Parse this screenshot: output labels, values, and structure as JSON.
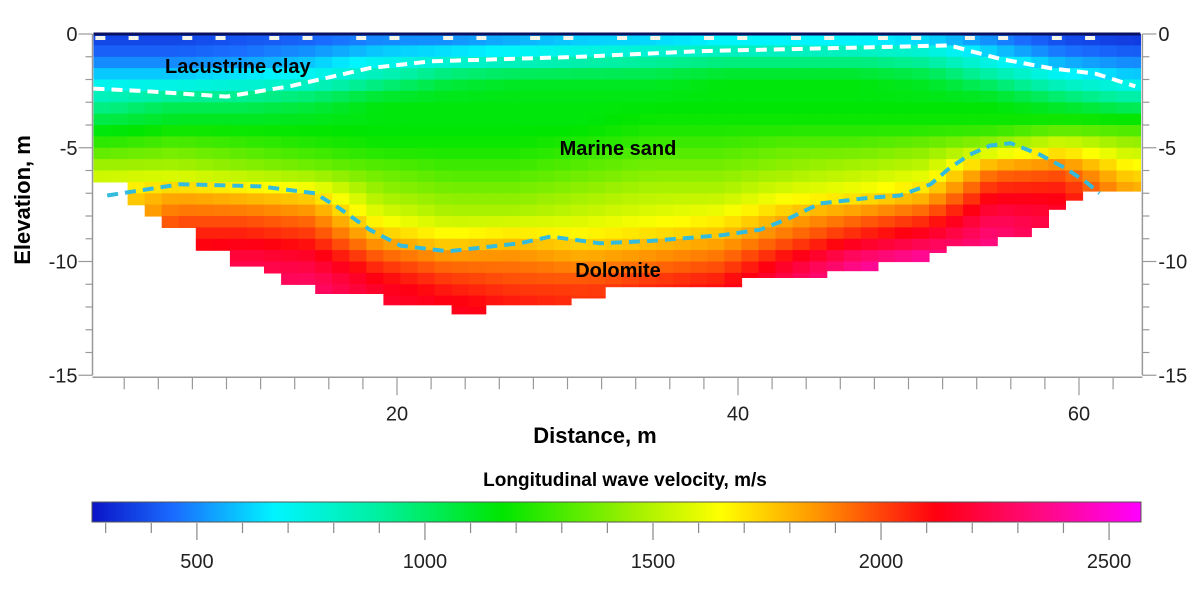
{
  "chart_data": {
    "type": "heatmap",
    "title": "",
    "xlabel": "Distance, m",
    "ylabel": "Elevation, m",
    "xlim": [
      2.2,
      63.6
    ],
    "ylim": [
      -15,
      0
    ],
    "xticks": [
      "20",
      "40",
      "60"
    ],
    "xtick_values": [
      20,
      40,
      60
    ],
    "yticks": [
      "0",
      "-5",
      "-10",
      "-15"
    ],
    "ytick_values": [
      0,
      -5,
      -10,
      -15
    ],
    "annotations": [
      {
        "text": "Lacustrine clay",
        "x": 12,
        "y": -1.4
      },
      {
        "text": "Marine sand",
        "x": 33,
        "y": -5
      },
      {
        "text": "Dolomite",
        "x": 33,
        "y": -10.3
      }
    ],
    "grid_x": [
      3,
      7,
      11,
      15,
      19,
      23,
      27,
      31,
      35,
      39,
      43,
      47,
      51,
      55,
      59,
      63
    ],
    "grid_elevation": [
      0,
      -1,
      -2,
      -3,
      -4,
      -5,
      -6,
      -7,
      -8,
      -9,
      -10,
      -11,
      -12
    ],
    "velocity_columns": [
      [
        350,
        450,
        650,
        900,
        1100,
        1300,
        1500,
        1700
      ],
      [
        350,
        450,
        650,
        1000,
        1150,
        1350,
        1500,
        1800,
        1950,
        2100
      ],
      [
        380,
        480,
        700,
        1000,
        1150,
        1300,
        1450,
        1750,
        1950,
        2100,
        2250
      ],
      [
        400,
        550,
        750,
        1050,
        1150,
        1250,
        1400,
        1700,
        1900,
        2050,
        2200,
        2300
      ],
      [
        450,
        650,
        900,
        1150,
        1150,
        1200,
        1350,
        1450,
        1600,
        1800,
        2000,
        2150,
        2200
      ],
      [
        450,
        700,
        1050,
        1150,
        1150,
        1200,
        1300,
        1400,
        1500,
        1700,
        1900,
        2050,
        2150
      ],
      [
        500,
        750,
        1100,
        1150,
        1150,
        1200,
        1300,
        1400,
        1500,
        1750,
        1900,
        2000,
        2100
      ],
      [
        550,
        800,
        1100,
        1150,
        1150,
        1250,
        1350,
        1450,
        1550,
        1700,
        1850,
        2000,
        2050
      ],
      [
        550,
        850,
        1100,
        1150,
        1200,
        1300,
        1400,
        1500,
        1600,
        1750,
        1900,
        2050
      ],
      [
        600,
        900,
        1150,
        1150,
        1200,
        1300,
        1400,
        1500,
        1650,
        1800,
        1950,
        2100
      ],
      [
        600,
        900,
        1150,
        1150,
        1200,
        1350,
        1450,
        1600,
        1800,
        1950,
        2150,
        2300
      ],
      [
        600,
        900,
        1150,
        1150,
        1200,
        1350,
        1500,
        1650,
        1900,
        2100,
        2350,
        2450
      ],
      [
        550,
        850,
        1100,
        1150,
        1200,
        1400,
        1550,
        1750,
        2000,
        2200,
        2450
      ],
      [
        450,
        650,
        950,
        1150,
        1200,
        1500,
        1900,
        2100,
        2250,
        2350
      ],
      [
        350,
        500,
        750,
        1050,
        1250,
        1650,
        1950,
        2100,
        2200
      ],
      [
        320,
        450,
        650,
        950,
        1250,
        1500,
        1700,
        1850
      ]
    ],
    "data_bottom": {
      "x": [
        2.2,
        4,
        5.5,
        6.5,
        8.5,
        10.5,
        12,
        13.5,
        15.5,
        19.5,
        23.7,
        25.5,
        30.5,
        32,
        40.6,
        45.2,
        48.3,
        50.8,
        52.7,
        55,
        57.1,
        58.4,
        59.2,
        60,
        61,
        63.6
      ],
      "elevation": [
        -6.5,
        -7.5,
        -8,
        -8.5,
        -9.5,
        -10.2,
        -10.5,
        -11,
        -11.4,
        -11.9,
        -12.3,
        -11.9,
        -11.6,
        -11.1,
        -10.7,
        -10.4,
        -10,
        -9.6,
        -9.3,
        -8.9,
        -8.5,
        -7.7,
        -7.3,
        -6.9,
        -6.9,
        -6.9
      ]
    },
    "interfaces": [
      {
        "name": "clay-sand-boundary",
        "color": "#ffffff",
        "x": [
          2.2,
          5,
          10,
          13.7,
          18.4,
          22,
          30.7,
          37.8,
          47,
          52.4,
          55.4,
          58.3,
          61,
          63.3
        ],
        "elevation": [
          -2.4,
          -2.5,
          -2.75,
          -2.3,
          -1.5,
          -1.2,
          -1.0,
          -0.75,
          -0.6,
          -0.5,
          -1.1,
          -1.5,
          -1.75,
          -2.3
        ]
      },
      {
        "name": "sand-dolomite-boundary",
        "color": "#33bbdd",
        "x": [
          3,
          7.3,
          12,
          15.2,
          16.7,
          18.4,
          20.2,
          23,
          27.2,
          29,
          31.9,
          34.8,
          39,
          41.3,
          43,
          44.8,
          47.7,
          49.5,
          51.3,
          52.4,
          53.6,
          54.8,
          56,
          57.7,
          59.2,
          60.4,
          61.2
        ],
        "elevation": [
          -7.1,
          -6.6,
          -6.7,
          -7.0,
          -7.7,
          -8.6,
          -9.3,
          -9.55,
          -9.2,
          -8.9,
          -9.2,
          -9.1,
          -8.85,
          -8.6,
          -8.1,
          -7.45,
          -7.2,
          -7.1,
          -6.6,
          -5.9,
          -5.3,
          -4.9,
          -4.8,
          -5.3,
          -5.9,
          -6.5,
          -7.0
        ]
      }
    ],
    "colorbar": {
      "label": "Longitudinal wave velocity, m/s",
      "range": [
        270,
        2570
      ],
      "ticks": [
        "500",
        "1000",
        "1500",
        "2000",
        "2500"
      ],
      "tick_values": [
        500,
        1000,
        1500,
        2000,
        2500
      ],
      "minor_step": 100,
      "colormap": [
        [
          270,
          "#0a14c8"
        ],
        [
          450,
          "#1a6cff"
        ],
        [
          670,
          "#00f4ff"
        ],
        [
          900,
          "#00f0a0"
        ],
        [
          1170,
          "#00e600"
        ],
        [
          1450,
          "#9cf000"
        ],
        [
          1650,
          "#ffff00"
        ],
        [
          1850,
          "#ff9a00"
        ],
        [
          2120,
          "#ff0010"
        ],
        [
          2350,
          "#ff0a80"
        ],
        [
          2570,
          "#ff00ff"
        ]
      ]
    }
  }
}
